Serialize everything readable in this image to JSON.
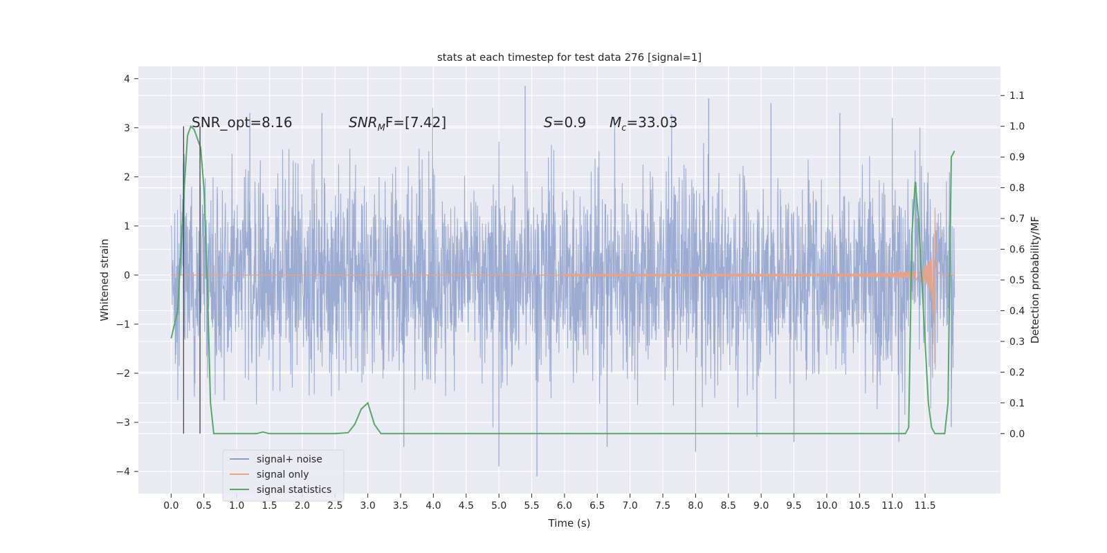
{
  "chart_data": {
    "type": "line",
    "title": "stats at each timestep for test data 276 [signal=1]",
    "xlabel": "Time (s)",
    "ylabel": "Whitened strain",
    "y2label": "Detection probability/MF",
    "xlim": [
      -0.5,
      12.65
    ],
    "ylim": [
      -4.45,
      4.25
    ],
    "y2lim": [
      -0.195,
      1.195
    ],
    "xticks": [
      "0.0",
      "0.5",
      "1.0",
      "1.5",
      "2.0",
      "2.5",
      "3.0",
      "3.5",
      "4.0",
      "4.5",
      "5.0",
      "5.5",
      "6.0",
      "6.5",
      "7.0",
      "7.5",
      "8.0",
      "8.5",
      "9.0",
      "9.5",
      "10.0",
      "10.5",
      "11.0",
      "11.5"
    ],
    "yticks": [
      "4",
      "3",
      "2",
      "1",
      "0",
      "−1",
      "−2",
      "−3",
      "−4"
    ],
    "y2ticks": [
      "1.1",
      "1.0",
      "0.9",
      "0.8",
      "0.7",
      "0.6",
      "0.5",
      "0.4",
      "0.3",
      "0.2",
      "0.1",
      "0.0"
    ],
    "grid": true,
    "legend_position": "lower-left",
    "annotations": [
      {
        "text": "SNR_opt=8.16",
        "x": 0.2,
        "y": 3.2
      },
      {
        "text_main": "SNR",
        "text_sub": "M",
        "text_rest": "F=[7.42]",
        "x": 2.6,
        "y": 3.2
      },
      {
        "text_main": "S",
        "text_rest": "=0.9",
        "x": 5.6,
        "y": 3.2
      },
      {
        "text_main": "M",
        "text_sub": "c",
        "text_rest": "=33.03",
        "x": 6.6,
        "y": 3.2
      }
    ],
    "vertical_markers": [
      0.19,
      0.44
    ],
    "series": [
      {
        "name": "signal+ noise",
        "color": "#8da0cb",
        "axis": "left",
        "description_kind": "noise",
        "x_start": 0.0,
        "x_end": 11.95,
        "envelope": [
          -2.2,
          2.2
        ],
        "spikes": [
          {
            "x": 5.4,
            "y": 3.85
          },
          {
            "x": 5.58,
            "y": -4.1
          },
          {
            "x": 5.0,
            "y": -3.9
          },
          {
            "x": 8.0,
            "y": -3.6
          },
          {
            "x": 8.2,
            "y": 3.6
          },
          {
            "x": 9.5,
            "y": -3.4
          },
          {
            "x": 6.65,
            "y": -3.5
          },
          {
            "x": 3.55,
            "y": -3.5
          },
          {
            "x": 11.0,
            "y": 3.2
          },
          {
            "x": 11.1,
            "y": -3.4
          },
          {
            "x": 11.9,
            "y": -3.1
          },
          {
            "x": 1.2,
            "y": 3.3
          },
          {
            "x": 2.3,
            "y": 3.3
          },
          {
            "x": 9.15,
            "y": 3.5
          },
          {
            "x": 10.2,
            "y": 3.3
          }
        ]
      },
      {
        "name": "signal only",
        "color": "#e5a38c",
        "axis": "left",
        "x_start": 0.0,
        "x_end": 11.95,
        "chirp_merger_time": 11.65
      },
      {
        "name": "signal statistics",
        "color": "#55a868",
        "axis": "right",
        "x": [
          0.0,
          0.1,
          0.2,
          0.25,
          0.3,
          0.35,
          0.4,
          0.45,
          0.5,
          0.55,
          0.6,
          0.65,
          0.7,
          0.75,
          1.0,
          1.3,
          1.4,
          1.5,
          2.0,
          2.5,
          2.7,
          2.8,
          2.9,
          3.0,
          3.1,
          3.2,
          3.3,
          4.0,
          4.5,
          5.0,
          5.5,
          6.0,
          7.0,
          8.0,
          9.0,
          9.5,
          10.0,
          11.0,
          11.2,
          11.25,
          11.3,
          11.35,
          11.4,
          11.45,
          11.5,
          11.55,
          11.6,
          11.65,
          11.7,
          11.8,
          11.85,
          11.9,
          11.95
        ],
        "y": [
          0.31,
          0.4,
          0.8,
          0.97,
          1.0,
          0.99,
          0.96,
          0.93,
          0.8,
          0.5,
          0.1,
          0.0,
          0.0,
          0.0,
          0.0,
          0.0,
          0.005,
          0.0,
          0.0,
          0.0,
          0.003,
          0.03,
          0.08,
          0.1,
          0.03,
          0.0,
          0.0,
          0.0,
          0.0,
          0.0,
          0.0,
          0.0,
          0.0,
          0.0,
          0.0,
          0.0,
          0.0,
          0.0,
          0.0,
          0.02,
          0.65,
          0.82,
          0.7,
          0.5,
          0.3,
          0.1,
          0.02,
          0.0,
          0.0,
          0.0,
          0.1,
          0.9,
          0.92
        ]
      }
    ]
  }
}
